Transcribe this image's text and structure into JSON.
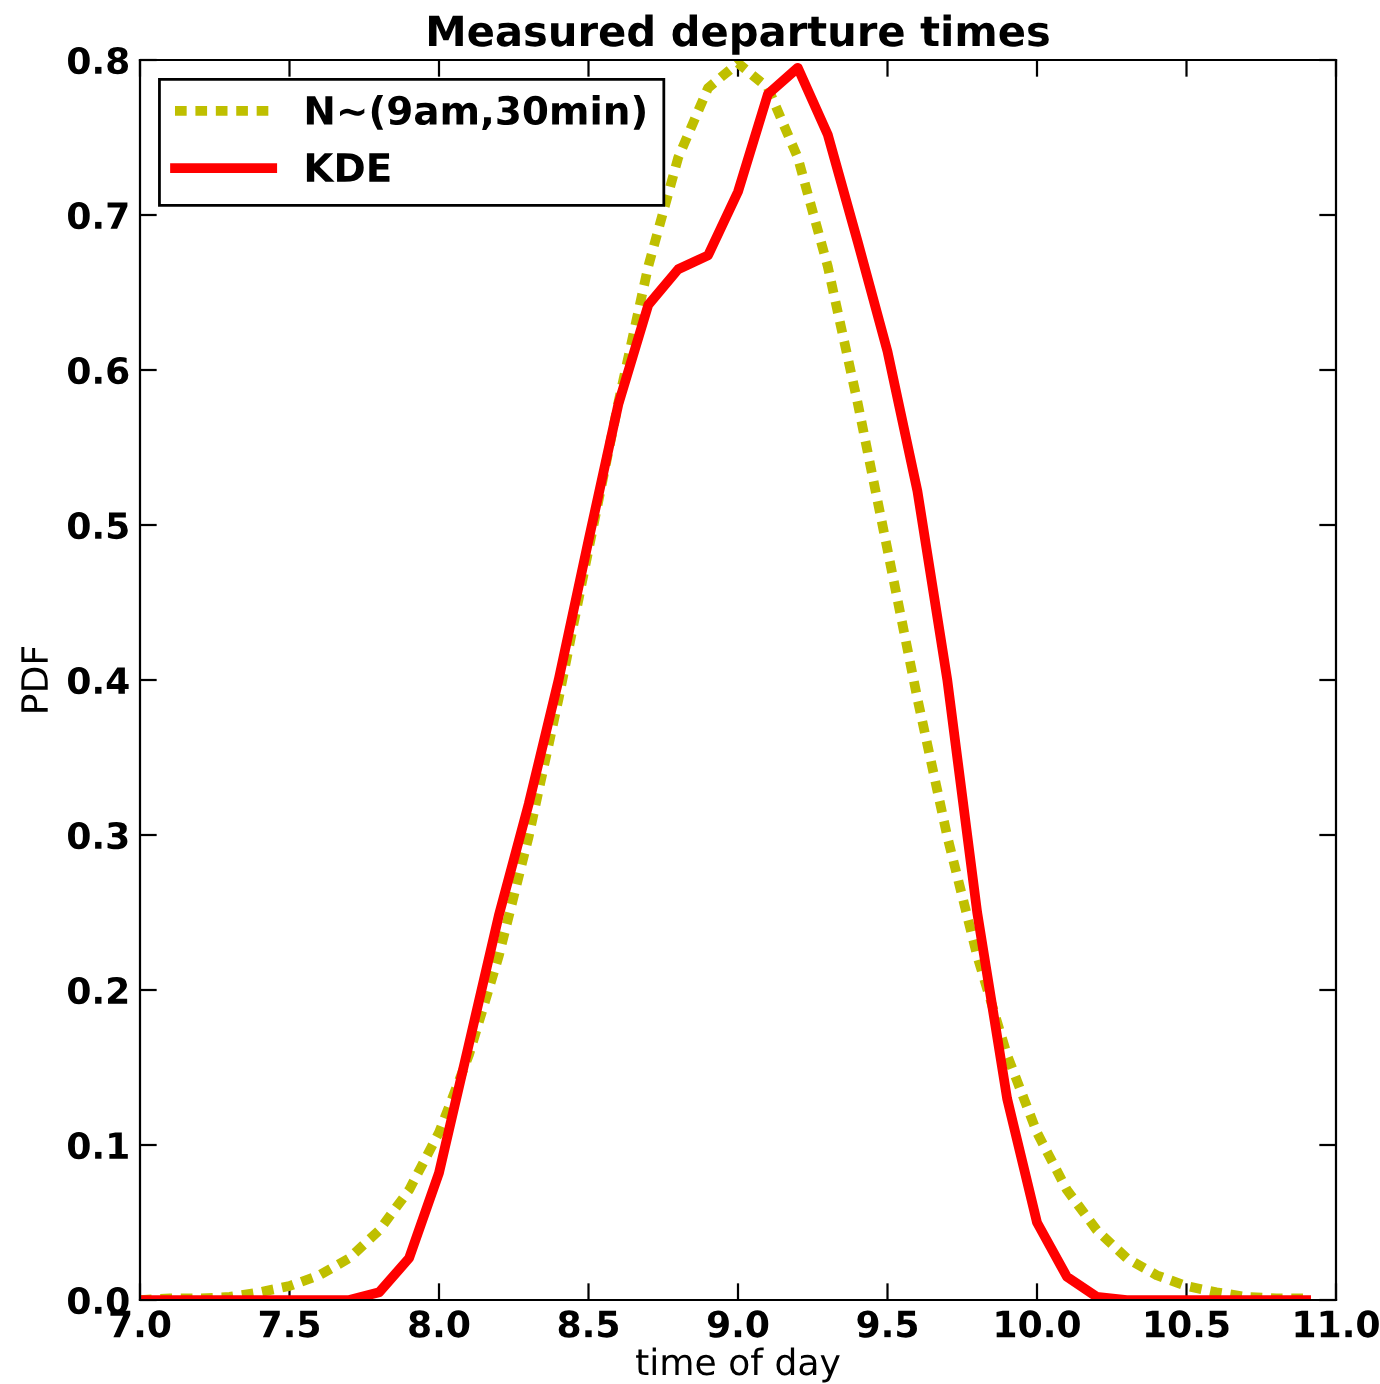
{
  "chart_data": {
    "type": "line",
    "title": "Measured departure times",
    "xlabel": "time of day",
    "ylabel": "PDF",
    "x": [
      7.0,
      7.1,
      7.2,
      7.3,
      7.4,
      7.5,
      7.6,
      7.7,
      7.8,
      7.9,
      8.0,
      8.1,
      8.2,
      8.3,
      8.4,
      8.5,
      8.6,
      8.7,
      8.8,
      8.9,
      9.0,
      9.1,
      9.2,
      9.3,
      9.4,
      9.5,
      9.6,
      9.7,
      9.8,
      9.9,
      10.0,
      10.1,
      10.2,
      10.3,
      10.4,
      10.5,
      10.6,
      10.7,
      10.8,
      10.9
    ],
    "series": [
      {
        "name": "N~(9am,30min)",
        "color": "#bfbf00",
        "line_style": "dashed",
        "values": [
          0.0,
          0.001,
          0.001,
          0.002,
          0.005,
          0.009,
          0.016,
          0.027,
          0.045,
          0.071,
          0.108,
          0.158,
          0.222,
          0.299,
          0.388,
          0.484,
          0.579,
          0.667,
          0.737,
          0.782,
          0.798,
          0.782,
          0.737,
          0.667,
          0.579,
          0.484,
          0.388,
          0.299,
          0.222,
          0.158,
          0.108,
          0.071,
          0.045,
          0.027,
          0.016,
          0.009,
          0.005,
          0.002,
          0.001,
          0.001
        ]
      },
      {
        "name": "KDE",
        "color": "#ff0000",
        "line_style": "solid",
        "values": [
          0,
          0,
          0,
          0,
          0,
          0,
          0,
          0,
          0.005,
          0.027,
          0.082,
          0.165,
          0.248,
          0.32,
          0.4,
          0.49,
          0.578,
          0.642,
          0.665,
          0.674,
          0.715,
          0.778,
          0.795,
          0.752,
          0.683,
          0.612,
          0.522,
          0.4,
          0.25,
          0.13,
          0.05,
          0.015,
          0.002,
          0,
          0,
          0,
          0,
          0,
          0,
          0
        ]
      }
    ],
    "xlim": [
      7.0,
      11.0
    ],
    "xticks": [
      {
        "value": 7.0,
        "label": "7.0"
      },
      7.5,
      {
        "value": 8.0,
        "label": "8.0"
      },
      8.5,
      {
        "value": 9.0,
        "label": "9.0"
      },
      9.5,
      {
        "value": 10.0,
        "label": "10.0"
      },
      10.5,
      {
        "value": 11.0,
        "label": "11.0"
      }
    ],
    "ylim": [
      0,
      0.8
    ],
    "yticks": [
      {
        "value": 0,
        "label": "0.0"
      },
      0.1,
      0.2,
      0.3,
      0.4,
      0.5,
      0.6,
      0.7,
      0.8
    ],
    "grid": false,
    "legend": "top left",
    "marker": "none"
  }
}
